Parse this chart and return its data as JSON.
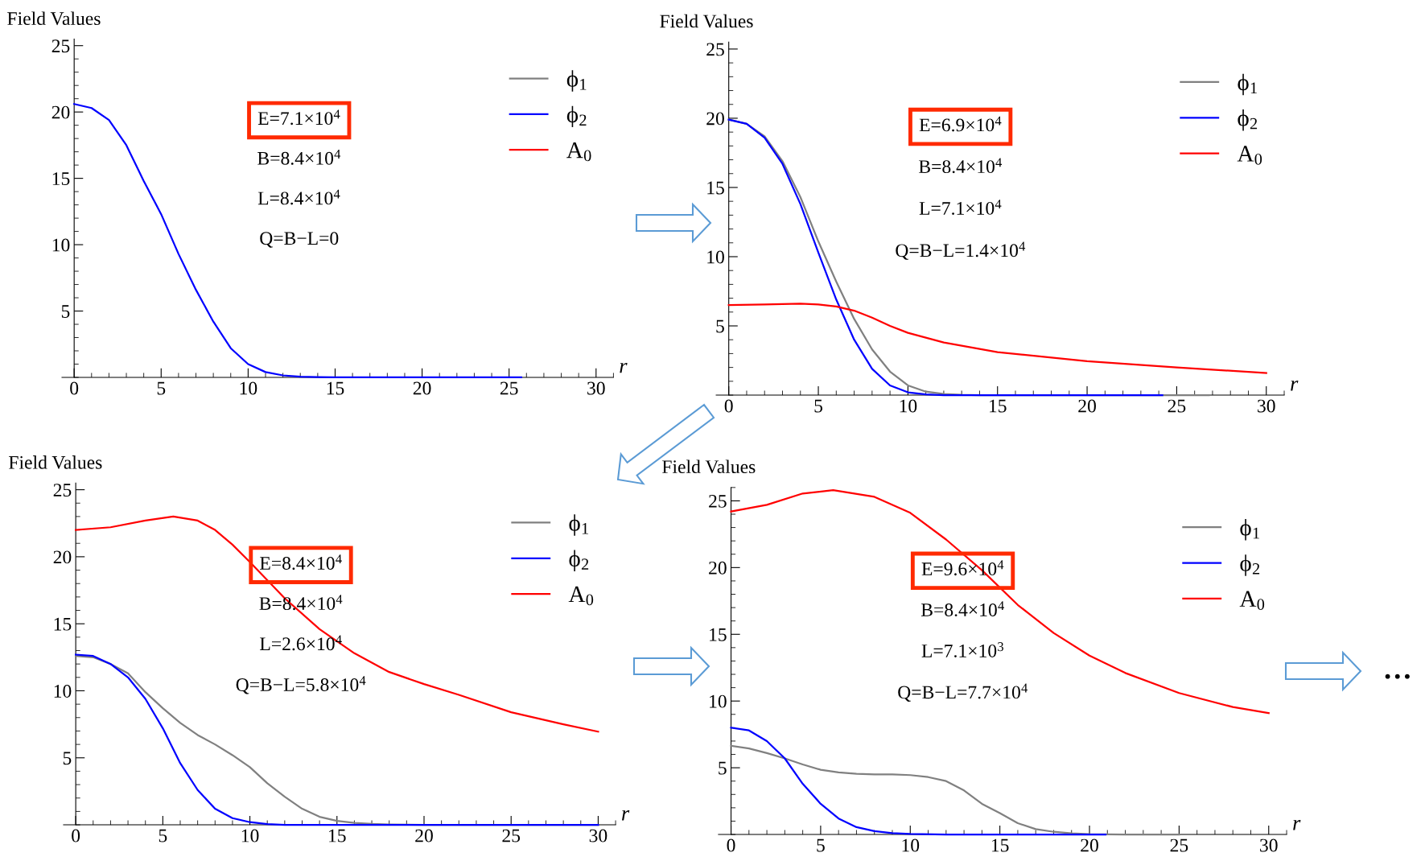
{
  "chart_data": [
    {
      "type": "line",
      "ylabel": "Field Values",
      "xlabel": "r",
      "xlim": [
        -0.7,
        31
      ],
      "ylim": [
        0,
        25.5
      ],
      "xticks": [
        0,
        5,
        10,
        15,
        20,
        25,
        30
      ],
      "yticks": [
        5,
        10,
        15,
        20,
        25
      ],
      "legend": "top right",
      "grid": false,
      "marker": "none",
      "line_style": "solid",
      "annotations": [
        "E=7.1×10$^{4}$",
        "B=8.4×10$^{4}$",
        "L=8.4×10$^{4}$",
        "Q=B−L=0"
      ],
      "series": [
        {
          "name": "ϕ$_{1}$",
          "color": "#808080"
        },
        {
          "name": "ϕ$_{2}$",
          "color": "#0000ff",
          "x": [
            0,
            1,
            2,
            3,
            4,
            5,
            6,
            7,
            8,
            9,
            10,
            11,
            12,
            13,
            14,
            15,
            20,
            25.7
          ],
          "values": [
            20.6,
            20.3,
            19.4,
            17.5,
            14.8,
            12.3,
            9.3,
            6.6,
            4.2,
            2.2,
            1.0,
            0.4,
            0.15,
            0.05,
            0.02,
            0,
            0,
            0
          ]
        },
        {
          "name": "A$_{0}$",
          "color": "#ff0000"
        }
      ]
    },
    {
      "type": "line",
      "ylabel": "Field Values",
      "xlabel": "r",
      "xlim": [
        -0.7,
        31
      ],
      "ylim": [
        0,
        25.5
      ],
      "xticks": [
        0,
        5,
        10,
        15,
        20,
        25,
        30
      ],
      "yticks": [
        5,
        10,
        15,
        20,
        25
      ],
      "legend": "top right",
      "grid": false,
      "marker": "none",
      "line_style": "solid",
      "annotations": [
        "E=6.9×10$^{4}$",
        "B=8.4×10$^{4}$",
        "L=7.1×10$^{4}$",
        "Q=B−L=1.4×10$^{4}$"
      ],
      "series": [
        {
          "name": "ϕ$_{1}$",
          "color": "#808080",
          "x": [
            0,
            1,
            2,
            3,
            4,
            5,
            6,
            7,
            8,
            9,
            10,
            11,
            12,
            13,
            14,
            20,
            26.8
          ],
          "values": [
            19.9,
            19.6,
            18.7,
            16.9,
            14.3,
            11.1,
            8.2,
            5.5,
            3.3,
            1.7,
            0.7,
            0.25,
            0.08,
            0.02,
            0,
            0,
            0
          ]
        },
        {
          "name": "ϕ$_{2}$",
          "color": "#0000ff",
          "x": [
            0,
            1,
            2,
            3,
            4,
            5,
            6,
            7,
            8,
            9,
            10,
            11,
            12,
            15,
            24.2
          ],
          "values": [
            19.9,
            19.6,
            18.6,
            16.7,
            13.8,
            10.3,
            6.9,
            4.0,
            1.9,
            0.7,
            0.2,
            0.05,
            0,
            0,
            0
          ]
        },
        {
          "name": "A$_{0}$",
          "color": "#ff0000",
          "x": [
            0,
            2,
            4,
            5,
            6,
            7,
            8,
            9,
            10,
            12,
            15,
            20,
            25,
            30
          ],
          "values": [
            6.5,
            6.55,
            6.6,
            6.55,
            6.4,
            6.1,
            5.6,
            5.0,
            4.5,
            3.8,
            3.1,
            2.45,
            2.0,
            1.6
          ]
        }
      ]
    },
    {
      "type": "line",
      "ylabel": "Field Values",
      "xlabel": "r",
      "xlim": [
        -0.7,
        31
      ],
      "ylim": [
        0,
        25.5
      ],
      "xticks": [
        0,
        5,
        10,
        15,
        20,
        25,
        30
      ],
      "yticks": [
        5,
        10,
        15,
        20,
        25
      ],
      "legend": "top right",
      "grid": false,
      "marker": "none",
      "line_style": "solid",
      "annotations": [
        "E=8.4×10$^{4}$",
        "B=8.4×10$^{4}$",
        "L=2.6×10$^{4}$",
        "Q=B−L=5.8×10$^{4}$"
      ],
      "series": [
        {
          "name": "ϕ$_{1}$",
          "color": "#808080",
          "x": [
            0,
            1,
            2,
            3,
            4,
            5,
            6,
            7,
            8,
            9,
            10,
            11,
            12,
            13,
            14,
            15,
            16,
            17,
            18,
            20,
            30
          ],
          "values": [
            12.6,
            12.5,
            12.0,
            11.3,
            9.9,
            8.7,
            7.6,
            6.7,
            6.0,
            5.2,
            4.3,
            3.1,
            2.1,
            1.2,
            0.6,
            0.3,
            0.15,
            0.07,
            0.03,
            0,
            0
          ]
        },
        {
          "name": "ϕ$_{2}$",
          "color": "#0000ff",
          "x": [
            0,
            1,
            2,
            3,
            4,
            5,
            6,
            7,
            8,
            9,
            10,
            11,
            12,
            30
          ],
          "values": [
            12.7,
            12.6,
            12.0,
            11.0,
            9.4,
            7.2,
            4.6,
            2.6,
            1.2,
            0.5,
            0.2,
            0.05,
            0,
            0
          ]
        },
        {
          "name": "A$_{0}$",
          "color": "#ff0000",
          "x": [
            0,
            2,
            4,
            5.6,
            7,
            8,
            9,
            10,
            12,
            14,
            16,
            18,
            20,
            22,
            25,
            28,
            30
          ],
          "values": [
            22.0,
            22.2,
            22.7,
            23.0,
            22.7,
            22.0,
            20.9,
            19.6,
            16.9,
            14.6,
            12.8,
            11.4,
            10.5,
            9.7,
            8.4,
            7.5,
            6.95
          ]
        }
      ]
    },
    {
      "type": "line",
      "ylabel": "Field Values",
      "xlabel": "r",
      "xlim": [
        -0.7,
        31
      ],
      "ylim": [
        0,
        26
      ],
      "xticks": [
        0,
        5,
        10,
        15,
        20,
        25,
        30
      ],
      "yticks": [
        5,
        10,
        15,
        20,
        25
      ],
      "legend": "top right",
      "grid": false,
      "marker": "none",
      "line_style": "solid",
      "annotations": [
        "E=9.6×10$^{4}$",
        "B=8.4×10$^{4}$",
        "L=7.1×10$^{3}$",
        "Q=B−L=7.7×10$^{4}$",
        "…"
      ],
      "series": [
        {
          "name": "ϕ$_{1}$",
          "color": "#808080",
          "x": [
            0,
            1,
            2,
            3,
            4,
            5,
            6,
            7,
            8,
            9,
            10,
            11,
            12,
            13,
            14,
            15,
            16,
            17,
            18,
            19,
            20,
            22,
            25
          ],
          "values": [
            6.65,
            6.45,
            6.1,
            5.7,
            5.25,
            4.85,
            4.65,
            4.55,
            4.5,
            4.5,
            4.45,
            4.3,
            4.0,
            3.3,
            2.3,
            1.6,
            0.85,
            0.4,
            0.2,
            0.08,
            0.03,
            0,
            0
          ]
        },
        {
          "name": "ϕ$_{2}$",
          "color": "#0000ff",
          "x": [
            0,
            1,
            2,
            3,
            4,
            5,
            6,
            7,
            8,
            9,
            10,
            12,
            20.9
          ],
          "values": [
            8.0,
            7.8,
            7.0,
            5.7,
            3.8,
            2.3,
            1.2,
            0.55,
            0.25,
            0.1,
            0.04,
            0,
            0
          ]
        },
        {
          "name": "A$_{0}$",
          "color": "#ff0000",
          "x": [
            0,
            2,
            4,
            5.7,
            8,
            10,
            12,
            14,
            16,
            18,
            20,
            22,
            25,
            28,
            30
          ],
          "values": [
            24.2,
            24.7,
            25.55,
            25.8,
            25.3,
            24.1,
            22.1,
            19.8,
            17.2,
            15.1,
            13.4,
            12.1,
            10.6,
            9.55,
            9.1
          ]
        }
      ]
    }
  ]
}
